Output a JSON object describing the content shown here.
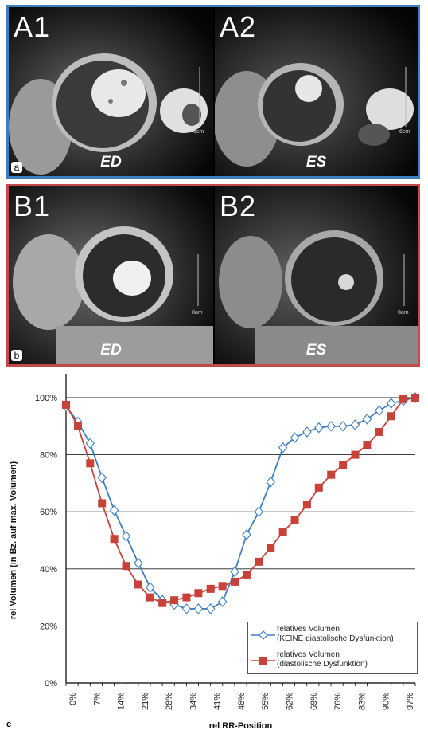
{
  "panel_a": {
    "images": [
      {
        "label": "A1",
        "phase": "ED",
        "scale": "6cm"
      },
      {
        "label": "A2",
        "phase": "ES",
        "scale": "6cm"
      }
    ],
    "letter": "a",
    "border_color": "#3d7fc1"
  },
  "panel_b": {
    "images": [
      {
        "label": "B1",
        "phase": "ED",
        "scale": "8am"
      },
      {
        "label": "B2",
        "phase": "ES",
        "scale": "8am"
      }
    ],
    "letter": "b",
    "border_color": "#c44a4a"
  },
  "panel_c": {
    "letter": "c"
  },
  "chart_data": {
    "type": "line",
    "xlabel": "rel RR-Position",
    "ylabel": "rel Volumen (in Bz. auf max. Volumen)",
    "x_tick_labels": [
      "0%",
      "7%",
      "14%",
      "21%",
      "28%",
      "34%",
      "41%",
      "48%",
      "55%",
      "62%",
      "69%",
      "76%",
      "83%",
      "90%",
      "97%"
    ],
    "y_tick_labels": [
      "0%",
      "20%",
      "40%",
      "60%",
      "80%",
      "100%"
    ],
    "ylim": [
      0,
      100
    ],
    "xlim": [
      0,
      100
    ],
    "grid": true,
    "legend_position": "bottom-right",
    "series": [
      {
        "name_line1": "relatives Volumen",
        "name_line2": "(KEINE diastolische Dysfunktion)",
        "color": "#3d7fc1",
        "marker": "diamond-open",
        "x": [
          0,
          3.4,
          6.9,
          10.3,
          13.8,
          17.2,
          20.7,
          24.1,
          27.6,
          31.0,
          34.5,
          37.9,
          41.4,
          44.8,
          48.3,
          51.7,
          55.2,
          58.6,
          62.1,
          65.5,
          69.0,
          72.4,
          75.9,
          79.3,
          82.8,
          86.2,
          89.7,
          93.1,
          96.6,
          100
        ],
        "values": [
          97,
          91.5,
          84,
          72,
          60.5,
          51.5,
          42,
          33.5,
          29,
          27.5,
          26,
          26,
          26,
          28.5,
          39,
          52,
          60,
          70.5,
          82.5,
          86,
          88,
          89.5,
          90,
          90,
          90.5,
          92.5,
          95.5,
          98,
          99,
          100
        ]
      },
      {
        "name_line1": "relatives Volumen",
        "name_line2": "(diastolische Dysfunktion)",
        "color": "#c8423a",
        "marker": "square",
        "x": [
          0,
          3.4,
          6.9,
          10.3,
          13.8,
          17.2,
          20.7,
          24.1,
          27.6,
          31.0,
          34.5,
          37.9,
          41.4,
          44.8,
          48.3,
          51.7,
          55.2,
          58.6,
          62.1,
          65.5,
          69.0,
          72.4,
          75.9,
          79.3,
          82.8,
          86.2,
          89.7,
          93.1,
          96.6,
          100
        ],
        "values": [
          97.5,
          90,
          77,
          63,
          50.5,
          41,
          34.5,
          30,
          28,
          29,
          30,
          31.5,
          33,
          34,
          35.5,
          38,
          42.5,
          47.5,
          53,
          57,
          62.5,
          68.5,
          73,
          76.5,
          80,
          83.5,
          88,
          93.5,
          99.5,
          100
        ]
      }
    ]
  }
}
